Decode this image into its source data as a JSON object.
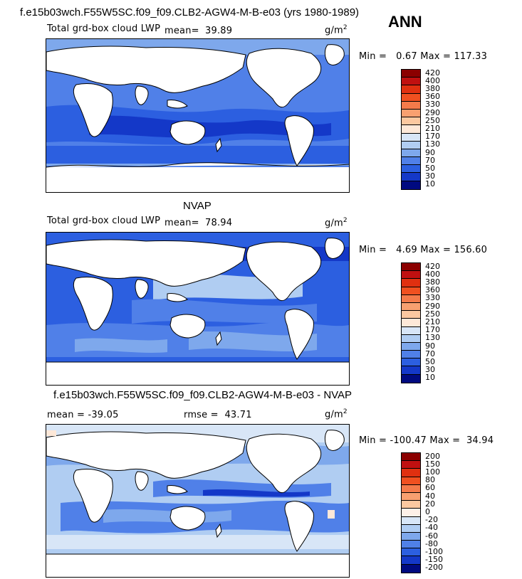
{
  "header": {
    "title": "f.e15b03wch.F55W5SC.f09_f09.CLB2-AGW4-M-B-e03 (yrs 1980-1989)",
    "season": "ANN"
  },
  "panels": [
    {
      "title": "",
      "variable": "Total grd-box cloud LWP",
      "mean_label": "mean=",
      "mean": "39.89",
      "units": "g/m",
      "units_sup": "2",
      "min_label": "Min =",
      "min": "0.67",
      "max_label": "Max =",
      "max": "117.33",
      "levels": [
        "420",
        "400",
        "380",
        "360",
        "330",
        "290",
        "250",
        "210",
        "170",
        "130",
        "90",
        "70",
        "50",
        "30",
        "10"
      ]
    },
    {
      "title": "NVAP",
      "variable": "Total grd-box cloud LWP",
      "mean_label": "mean=",
      "mean": "78.94",
      "units": "g/m",
      "units_sup": "2",
      "min_label": "Min =",
      "min": "4.69",
      "max_label": "Max =",
      "max": "156.60",
      "levels": [
        "420",
        "400",
        "380",
        "360",
        "330",
        "290",
        "250",
        "210",
        "170",
        "130",
        "90",
        "70",
        "50",
        "30",
        "10"
      ]
    },
    {
      "title": "f.e15b03wch.F55W5SC.f09_f09.CLB2-AGW4-M-B-e03 - NVAP",
      "mean_label": "mean =",
      "mean": "-39.05",
      "rmse_label": "rmse =",
      "rmse": "43.71",
      "units": "g/m",
      "units_sup": "2",
      "min_label": "Min =",
      "min": "-100.47",
      "max_label": "Max =",
      "max": "34.94",
      "levels": [
        "200",
        "150",
        "100",
        "80",
        "60",
        "40",
        "20",
        "0",
        "-20",
        "-40",
        "-60",
        "-80",
        "-100",
        "-150",
        "-200"
      ]
    }
  ],
  "colors": {
    "abs_scale": [
      "#8b0000",
      "#c01010",
      "#e03010",
      "#f05020",
      "#f47a4a",
      "#f8a070",
      "#fbc8a0",
      "#fde8d8",
      "#d8e6f7",
      "#b0cdf2",
      "#7ea8ec",
      "#5080e8",
      "#2c5fe0",
      "#1438c8",
      "#000a80"
    ],
    "diff_scale": [
      "#8b0000",
      "#c01010",
      "#e03010",
      "#f05020",
      "#f47a4a",
      "#f8a070",
      "#fbc8a0",
      "#fdf0e8",
      "#d8e6f7",
      "#b0cdf2",
      "#7ea8ec",
      "#5080e8",
      "#2c5fe0",
      "#1438c8",
      "#000a80"
    ]
  },
  "chart_data": [
    {
      "type": "heatmap",
      "title": "",
      "subtitle": "Total grd-box cloud LWP",
      "mean": 39.89,
      "min": 0.67,
      "max": 117.33,
      "units": "g/m2",
      "contour_levels": [
        10,
        30,
        50,
        70,
        90,
        130,
        170,
        210,
        250,
        290,
        330,
        360,
        380,
        400,
        420
      ]
    },
    {
      "type": "heatmap",
      "title": "NVAP",
      "subtitle": "Total grd-box cloud LWP",
      "mean": 78.94,
      "min": 4.69,
      "max": 156.6,
      "units": "g/m2",
      "contour_levels": [
        10,
        30,
        50,
        70,
        90,
        130,
        170,
        210,
        250,
        290,
        330,
        360,
        380,
        400,
        420
      ]
    },
    {
      "type": "heatmap",
      "title": "f.e15b03wch.F55W5SC.f09_f09.CLB2-AGW4-M-B-e03 - NVAP",
      "mean": -39.05,
      "rmse": 43.71,
      "min": -100.47,
      "max": 34.94,
      "units": "g/m2",
      "contour_levels": [
        -200,
        -150,
        -100,
        -80,
        -60,
        -40,
        -20,
        0,
        20,
        40,
        60,
        80,
        100,
        150,
        200
      ]
    }
  ]
}
